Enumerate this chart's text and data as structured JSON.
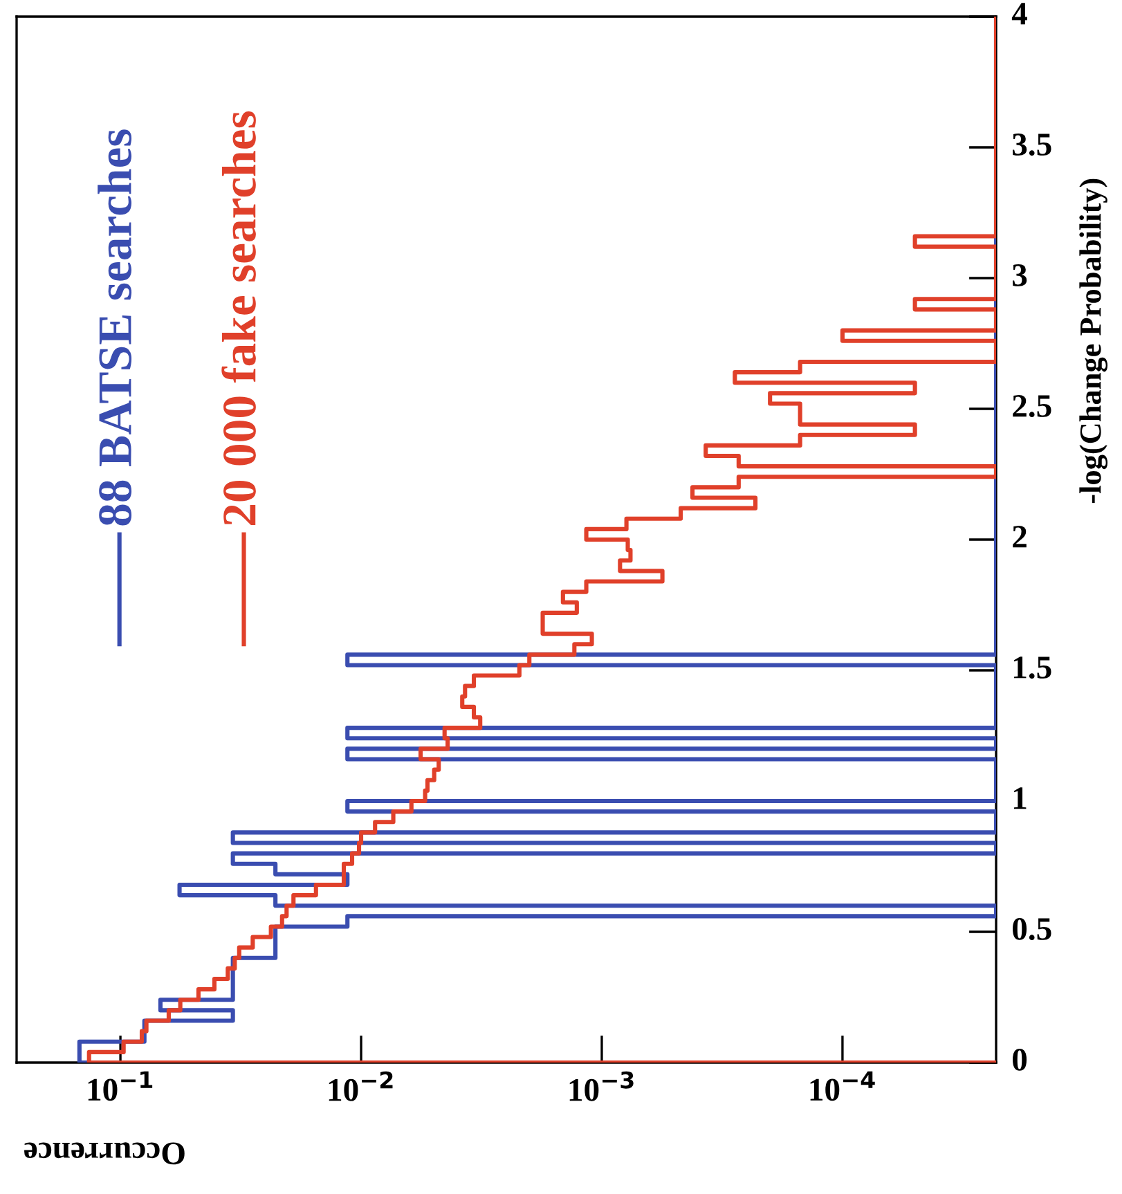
{
  "chart_data": {
    "type": "histogram",
    "orientation": "horizontal",
    "xlabel": "Occurrence",
    "ylabel": "-log(Change Probability)",
    "bins": [
      0,
      0.04,
      0.08,
      0.12,
      0.16,
      0.2,
      0.24,
      0.28,
      0.32,
      0.36,
      0.4,
      0.44,
      0.48,
      0.52,
      0.56,
      0.6,
      0.64,
      0.68,
      0.72,
      0.76,
      0.8,
      0.84,
      0.88,
      0.92,
      0.96,
      1,
      1.04,
      1.08,
      1.12,
      1.16,
      1.2,
      1.24,
      1.28,
      1.32,
      1.36,
      1.4,
      1.44,
      1.48,
      1.52,
      1.56,
      1.6,
      1.64,
      1.68,
      1.72,
      1.76,
      1.8,
      1.84,
      1.88,
      1.92,
      1.96,
      2,
      2.04,
      2.08,
      2.12,
      2.16,
      2.2,
      2.24,
      2.28,
      2.32,
      2.36,
      2.4,
      2.44,
      2.48,
      2.52,
      2.56,
      2.6,
      2.64,
      2.68,
      2.72,
      2.76,
      2.8,
      2.84,
      2.88,
      2.92,
      2.96,
      3,
      3.04,
      3.08,
      3.12,
      3.16,
      3.2,
      3.24,
      3.28,
      3.32,
      3.36,
      3.4,
      3.44,
      3.48,
      3.52,
      3.56,
      3.6,
      3.64,
      3.68,
      3.72,
      3.76,
      3.8,
      3.84,
      3.88,
      3.92,
      3.96,
      4
    ],
    "series": [
      {
        "name": "88 BATSE searches",
        "color": "#3a4db0",
        "values": [
          0.148,
          0.148,
          0.0795,
          0.0795,
          0.0341,
          0.0682,
          0.0341,
          0.0341,
          0.0341,
          0.0341,
          0.0227,
          0.0227,
          0.0227,
          0.0114,
          null,
          0.0227,
          0.0568,
          0.0114,
          0.0227,
          0.0341,
          null,
          0.0341,
          null,
          null,
          0.0114,
          null,
          null,
          null,
          null,
          0.0114,
          null,
          0.0114,
          null,
          null,
          null,
          null,
          null,
          null,
          0.0114,
          null,
          null,
          null,
          null,
          null,
          null,
          null,
          null,
          null,
          null,
          null,
          null,
          null,
          null,
          null,
          null,
          null,
          null,
          null,
          null,
          null,
          null,
          null,
          null,
          null,
          null,
          null,
          null,
          null,
          null,
          null,
          null,
          null,
          null,
          null,
          null,
          null,
          null,
          null,
          null,
          null,
          null,
          null,
          null,
          null,
          null,
          null,
          null,
          null,
          null,
          null,
          null,
          null,
          null,
          null,
          null,
          null,
          null,
          null,
          null,
          null
        ]
      },
      {
        "name": "20 000 fake searches",
        "color": "#e0402a",
        "values": [
          0.135,
          0.097,
          0.0815,
          0.078,
          0.063,
          0.0564,
          0.0474,
          0.0407,
          0.0358,
          0.0335,
          0.0321,
          0.0282,
          0.0237,
          0.0213,
          0.0204,
          0.0191,
          0.0154,
          0.0118,
          0.0118,
          0.0109,
          0.0102,
          0.01,
          0.00875,
          0.00735,
          0.00618,
          0.00542,
          0.0053,
          0.00497,
          0.00476,
          0.00566,
          0.00437,
          0.0045,
          0.0032,
          0.0034,
          0.0038,
          0.0037,
          0.0034,
          0.0022,
          0.002,
          0.0013,
          0.0011,
          0.00176,
          0.00176,
          0.00127,
          0.00145,
          0.00116,
          0.00056,
          0.00084,
          0.00076,
          0.00078,
          0.00116,
          0.00079,
          0.00047,
          0.00023,
          0.00042,
          0.00027,
          null,
          0.00027,
          0.00037,
          0.00015,
          5e-05,
          0.00015,
          0.00015,
          0.0002,
          5e-05,
          0.00028,
          0.00015,
          null,
          null,
          0.0001,
          null,
          null,
          5e-05,
          null,
          null,
          null,
          null,
          null,
          5e-05,
          null,
          null,
          null,
          null,
          null,
          null,
          null,
          null,
          null,
          null,
          null,
          null,
          null,
          null,
          null,
          null,
          null,
          null,
          null,
          null,
          null
        ]
      }
    ],
    "log": "x",
    "xlim": [
      0.27,
      2.3e-05
    ],
    "xticks": [
      {
        "value": 0.1,
        "label": "10$^{−1}$"
      },
      {
        "value": 0.01,
        "label": "10$^{−2}$"
      },
      {
        "value": 0.001,
        "label": "10$^{−3}$"
      },
      {
        "value": 0.0001,
        "label": "10$^{−4}$"
      }
    ],
    "ylim": [
      0,
      4
    ],
    "yticks": [
      0,
      0.5,
      1,
      1.5,
      2,
      2.5,
      3,
      3.5,
      4
    ],
    "legend": "top left",
    "grid": false
  }
}
